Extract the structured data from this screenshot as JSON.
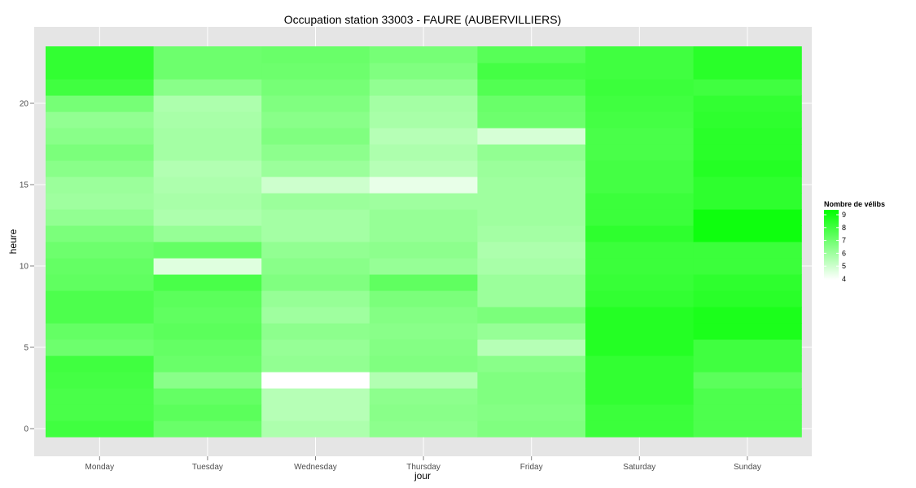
{
  "chart_data": {
    "type": "heatmap",
    "title": "Occupation station 33003 - FAURE (AUBERVILLIERS)",
    "xlabel": "jour",
    "ylabel": "heure",
    "x_categories": [
      "Monday",
      "Tuesday",
      "Wednesday",
      "Thursday",
      "Friday",
      "Saturday",
      "Sunday"
    ],
    "y_ticks": [
      0,
      5,
      10,
      15,
      20
    ],
    "y_range": [
      -0.5,
      23.5
    ],
    "grid": true,
    "background_color": "#e5e5e5",
    "color_scale": {
      "low": "#ffffff",
      "high": "#00ff00",
      "min": 4,
      "max": 9.6
    },
    "legend": {
      "title": "Nombre de vélibs",
      "labels": [
        "9",
        "8",
        "7",
        "6",
        "5",
        "4"
      ],
      "values": [
        9,
        8,
        7,
        6,
        5,
        4
      ],
      "position": "right"
    },
    "values": [
      [
        8.2,
        7.3,
        5.8,
        6.5,
        6.8,
        8.3,
        7.9
      ],
      [
        8.0,
        7.6,
        5.6,
        6.6,
        6.7,
        8.3,
        7.9
      ],
      [
        8.0,
        7.4,
        5.6,
        6.5,
        6.8,
        8.5,
        7.9
      ],
      [
        8.1,
        6.6,
        4.0,
        5.7,
        6.8,
        8.5,
        7.6
      ],
      [
        8.2,
        7.3,
        6.4,
        6.8,
        6.6,
        8.5,
        8.2
      ],
      [
        7.2,
        7.4,
        6.3,
        6.7,
        5.6,
        8.8,
        8.2
      ],
      [
        7.4,
        7.6,
        6.5,
        6.6,
        6.3,
        8.8,
        9.0
      ],
      [
        7.9,
        7.5,
        6.1,
        6.7,
        6.9,
        8.8,
        9.0
      ],
      [
        7.9,
        7.6,
        6.3,
        6.9,
        6.2,
        8.5,
        8.7
      ],
      [
        7.5,
        8.0,
        6.8,
        7.5,
        6.2,
        8.4,
        8.6
      ],
      [
        7.4,
        4.7,
        6.6,
        6.3,
        5.9,
        8.3,
        8.3
      ],
      [
        7.2,
        7.4,
        6.4,
        6.5,
        5.8,
        8.3,
        8.3
      ],
      [
        6.9,
        6.3,
        6.0,
        6.3,
        6.0,
        8.6,
        9.3
      ],
      [
        6.4,
        5.8,
        6.0,
        6.3,
        6.1,
        8.3,
        9.3
      ],
      [
        6.1,
        5.9,
        6.2,
        6.1,
        6.1,
        8.3,
        8.6
      ],
      [
        6.2,
        5.8,
        5.1,
        4.5,
        6.1,
        8.1,
        8.6
      ],
      [
        6.6,
        5.7,
        6.2,
        5.6,
        6.2,
        8.1,
        8.8
      ],
      [
        6.9,
        6.0,
        6.5,
        5.8,
        6.4,
        8.0,
        8.7
      ],
      [
        6.6,
        6.0,
        6.8,
        5.6,
        4.9,
        8.0,
        8.7
      ],
      [
        6.4,
        5.9,
        6.6,
        5.9,
        7.2,
        8.1,
        8.6
      ],
      [
        7.0,
        5.8,
        6.8,
        6.0,
        7.3,
        8.2,
        8.5
      ],
      [
        8.2,
        6.6,
        7.0,
        6.4,
        7.8,
        8.3,
        8.2
      ],
      [
        8.5,
        7.2,
        7.2,
        6.8,
        8.1,
        8.2,
        8.7
      ],
      [
        8.5,
        7.2,
        7.3,
        7.0,
        7.7,
        8.2,
        8.7
      ]
    ]
  }
}
